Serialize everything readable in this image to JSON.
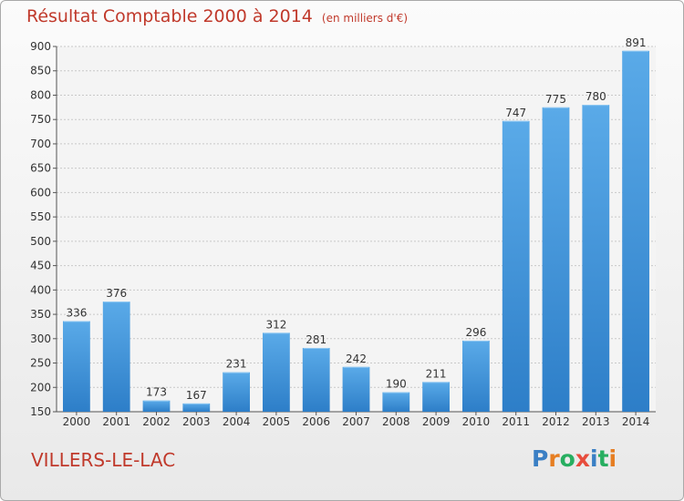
{
  "header": {
    "title": "Résultat Comptable 2000 à 2014",
    "subtitle": "(en milliers d'€)"
  },
  "footer": {
    "place": "VILLERS-LE-LAC",
    "logo": "Proxiti"
  },
  "colors": {
    "bar_light": "#5aaae8",
    "bar_dark": "#2d7ec8",
    "title": "#c0392b",
    "logo_letters": [
      "#3a7fc4",
      "#e67e22",
      "#27ae60",
      "#e74c3c",
      "#3a7fc4",
      "#27ae60",
      "#e67e22"
    ]
  },
  "chart_data": {
    "type": "bar",
    "title": "Résultat Comptable 2000 à 2014",
    "subtitle": "(en milliers d'€)",
    "xlabel": "",
    "ylabel": "",
    "categories": [
      "2000",
      "2001",
      "2002",
      "2003",
      "2004",
      "2005",
      "2006",
      "2007",
      "2008",
      "2009",
      "2010",
      "2011",
      "2012",
      "2013",
      "2014"
    ],
    "values": [
      336,
      376,
      173,
      167,
      231,
      312,
      281,
      242,
      190,
      211,
      296,
      747,
      775,
      780,
      891
    ],
    "ylim": [
      150,
      900
    ],
    "yticks": [
      150,
      200,
      250,
      300,
      350,
      400,
      450,
      500,
      550,
      600,
      650,
      700,
      750,
      800,
      850,
      900
    ],
    "grid": true,
    "data_labels": true
  }
}
